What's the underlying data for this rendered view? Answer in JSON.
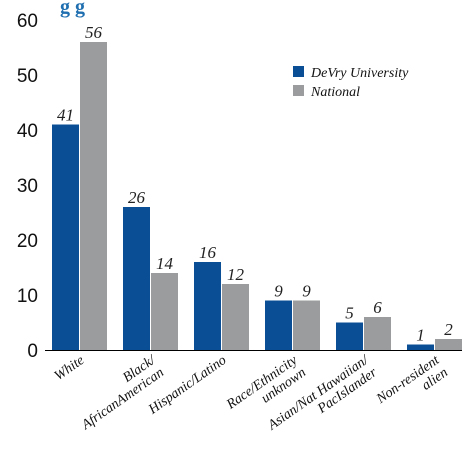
{
  "title_fragment": "g                                  g",
  "colors": {
    "devry": "#0a4f96",
    "national": "#9b9c9e",
    "title": "#1f6fb0",
    "axis": "#000000"
  },
  "chart_data": {
    "type": "bar",
    "categories": [
      [
        "White"
      ],
      [
        "Black/",
        "AfricanAmerican"
      ],
      [
        "Hispanic/Latino"
      ],
      [
        "Race/Ethnicity",
        "unknown"
      ],
      [
        "Asian/Nat Hawaiian/",
        "PacIslander"
      ],
      [
        "Non-resident",
        "alien"
      ]
    ],
    "series": [
      {
        "name": "DeVry University",
        "values": [
          41,
          26,
          16,
          9,
          5,
          1
        ]
      },
      {
        "name": "National",
        "values": [
          56,
          14,
          12,
          9,
          6,
          2
        ]
      }
    ],
    "ylim": [
      0,
      60
    ],
    "yticks": [
      0,
      10,
      20,
      30,
      40,
      50,
      60
    ],
    "legend_position": "top-right",
    "grid": false
  }
}
